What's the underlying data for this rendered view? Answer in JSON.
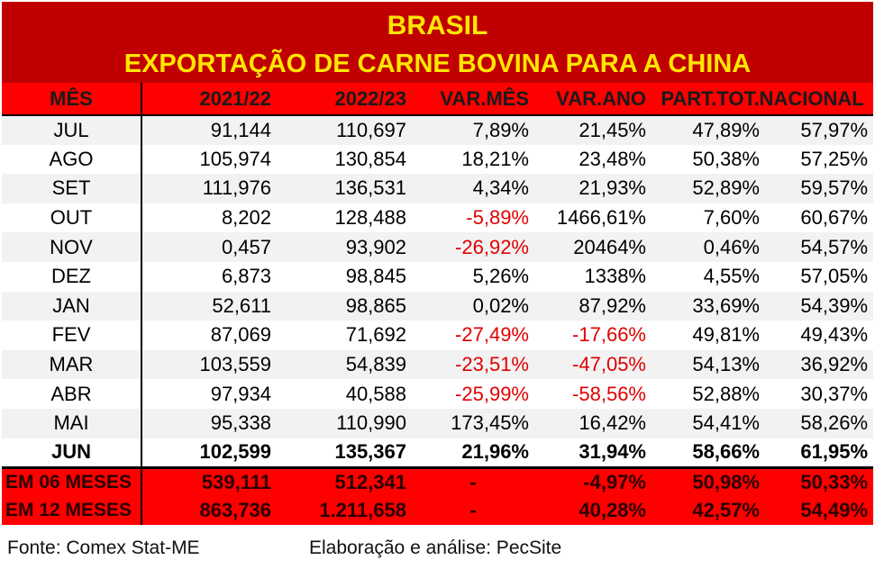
{
  "title": "BRASIL",
  "subtitle": "EXPORTAÇÃO DE CARNE BOVINA PARA A CHINA",
  "headers": [
    "MÊS",
    "2021/22",
    "2022/23",
    "VAR.MÊS",
    "VAR.ANO",
    "PART.TOT.NACIONAL"
  ],
  "rows": [
    [
      "JUL",
      "91,144",
      "110,697",
      "7,89%",
      "21,45%",
      "47,89%",
      "57,97%"
    ],
    [
      "AGO",
      "105,974",
      "130,854",
      "18,21%",
      "23,48%",
      "50,38%",
      "57,25%"
    ],
    [
      "SET",
      "111,976",
      "136,531",
      "4,34%",
      "21,93%",
      "52,89%",
      "59,57%"
    ],
    [
      "OUT",
      "8,202",
      "128,488",
      "-5,89%",
      "1466,61%",
      "7,60%",
      "60,67%"
    ],
    [
      "NOV",
      "0,457",
      "93,902",
      "-26,92%",
      "20464%",
      "0,46%",
      "54,57%"
    ],
    [
      "DEZ",
      "6,873",
      "98,845",
      "5,26%",
      "1338%",
      "4,55%",
      "57,05%"
    ],
    [
      "JAN",
      "52,611",
      "98,865",
      "0,02%",
      "87,92%",
      "33,69%",
      "54,39%"
    ],
    [
      "FEV",
      "87,069",
      "71,692",
      "-27,49%",
      "-17,66%",
      "49,81%",
      "49,43%"
    ],
    [
      "MAR",
      "103,559",
      "54,839",
      "-23,51%",
      "-47,05%",
      "54,13%",
      "36,92%"
    ],
    [
      "ABR",
      "97,934",
      "40,588",
      "-25,99%",
      "-58,56%",
      "52,88%",
      "30,37%"
    ],
    [
      "MAI",
      "95,338",
      "110,990",
      "173,45%",
      "16,42%",
      "54,41%",
      "58,26%"
    ],
    [
      "JUN",
      "102,599",
      "135,367",
      "21,96%",
      "31,94%",
      "58,66%",
      "61,95%"
    ]
  ],
  "totals": [
    [
      "EM 06 MESES",
      "539,111",
      "512,341",
      "-",
      "-4,97%",
      "50,98%",
      "50,33%"
    ],
    [
      "EM 12 MESES",
      "863,736",
      "1.211,658",
      "-",
      "40,28%",
      "42,57%",
      "54,49%"
    ]
  ],
  "footer": {
    "source": "Fonte: Comex Stat-ME",
    "credit": "Elaboração e análise: PecSite"
  },
  "colors": {
    "header_bg": "#c00000",
    "title_text": "#ffe600",
    "highlight": "#ff0000",
    "negative": "#e00000"
  }
}
